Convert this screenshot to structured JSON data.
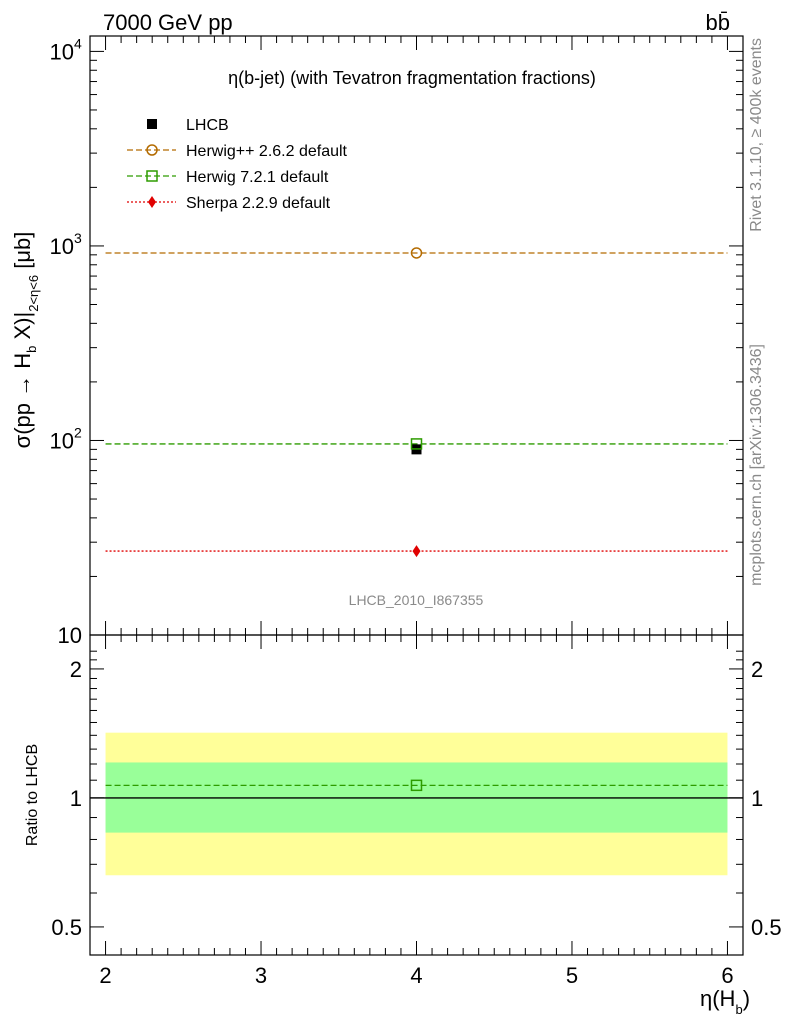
{
  "header": {
    "energy": "7000 GeV pp",
    "process": "bb̄",
    "rivet": "Rivet 3.1.10, ≥ 400k events",
    "site": "mcplots.cern.ch [arXiv:1306.3436]",
    "analysis": "LHCB_2010_I867355"
  },
  "chart_data": [
    {
      "type": "scatter",
      "title": "η(b-jet) (with Tevatron fragmentation fractions)",
      "ylabel": "σ(pp → H_b X)|_{2<η<6} [μb]",
      "yscale": "log",
      "ylim": [
        10,
        12000
      ],
      "xlim": [
        1.9,
        6.1
      ],
      "yticks": [
        {
          "value": 10,
          "label": "10"
        },
        {
          "value": 100,
          "label": "10",
          "exp": "2"
        },
        {
          "value": 1000,
          "label": "10",
          "exp": "3"
        },
        {
          "value": 10000,
          "label": "10",
          "exp": "4"
        }
      ],
      "legend_position": "top-left",
      "series": [
        {
          "name": "LHCB",
          "marker": "square-filled",
          "color": "#000000",
          "x": [
            4
          ],
          "y": [
            90
          ]
        },
        {
          "name": "Herwig++ 2.6.2 default",
          "marker": "circle-open",
          "line": "dashed",
          "color": "#b36b00",
          "x": [
            4
          ],
          "y": [
            920
          ],
          "xrange": [
            2,
            6
          ]
        },
        {
          "name": "Herwig 7.2.1 default",
          "marker": "square-open",
          "line": "dashed",
          "color": "#2e9c00",
          "x": [
            4
          ],
          "y": [
            96
          ],
          "xrange": [
            2,
            6
          ]
        },
        {
          "name": "Sherpa 2.2.9 default",
          "marker": "diamond-filled",
          "line": "dotted",
          "color": "#e00000",
          "x": [
            4
          ],
          "y": [
            27
          ],
          "xrange": [
            2,
            6
          ]
        }
      ]
    },
    {
      "type": "scatter",
      "ylabel": "Ratio to LHCB",
      "xlabel": "η(H_b)",
      "yscale": "log",
      "ylim": [
        0.43,
        2.4
      ],
      "xlim": [
        1.9,
        6.1
      ],
      "yticks": [
        {
          "value": 0.5,
          "label": "0.5"
        },
        {
          "value": 1,
          "label": "1"
        },
        {
          "value": 2,
          "label": "2"
        }
      ],
      "xticks": [
        2,
        3,
        4,
        5,
        6
      ],
      "bands": [
        {
          "color": "#ffff99",
          "lo": 0.66,
          "hi": 1.42,
          "x": [
            2,
            6
          ]
        },
        {
          "color": "#99ff99",
          "lo": 0.83,
          "hi": 1.21,
          "x": [
            2,
            6
          ]
        }
      ],
      "series": [
        {
          "name": "Herwig 7.2.1 default",
          "marker": "square-open",
          "line": "dashed",
          "color": "#2e9c00",
          "x": [
            4
          ],
          "y": [
            1.07
          ],
          "xrange": [
            2,
            6
          ]
        }
      ]
    }
  ]
}
